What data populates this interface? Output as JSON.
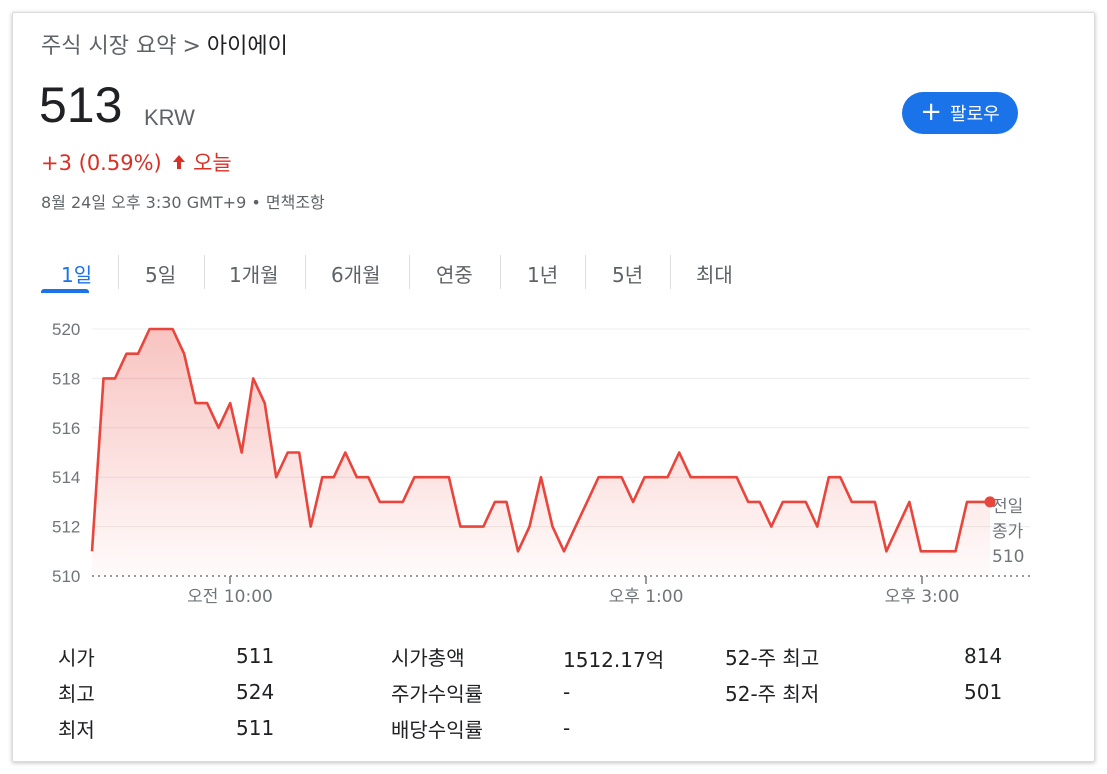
{
  "breadcrumb": {
    "root": "주식 시장 요약",
    "separator": ">",
    "company": "아이에이"
  },
  "quote": {
    "price": "513",
    "currency": "KRW",
    "change": "+3 (0.59%)",
    "change_period": "오늘",
    "timestamp": "8월 24일 오후 3:30 GMT+9",
    "disclaimer": "면책조항"
  },
  "follow_button": {
    "label": "팔로우",
    "icon": "plus-icon"
  },
  "tabs": [
    {
      "label": "1일",
      "active": true
    },
    {
      "label": "5일"
    },
    {
      "label": "1개월"
    },
    {
      "label": "6개월"
    },
    {
      "label": "연중"
    },
    {
      "label": "1년"
    },
    {
      "label": "5년"
    },
    {
      "label": "최대"
    }
  ],
  "colors": {
    "accent": "#1a73e8",
    "negative_positive": "#d93025",
    "line": "#e8453c"
  },
  "chart_data": {
    "type": "area",
    "y_ticks": [
      "520",
      "518",
      "516",
      "514",
      "512",
      "510"
    ],
    "ylim": [
      510,
      520
    ],
    "x_tick_labels": [
      "오전 10:00",
      "오후 1:00",
      "오후 3:00"
    ],
    "x_tick_times": [
      "09:45",
      "10:00",
      "11:00",
      "12:00",
      "13:00",
      "14:00",
      "15:00",
      "15:30"
    ],
    "previous_close_label": [
      "전일",
      "종가",
      "510"
    ],
    "previous_close": 510,
    "grid": true,
    "values": [
      511,
      518,
      518,
      519,
      519,
      520,
      520,
      520,
      519,
      517,
      517,
      516,
      517,
      515,
      518,
      517,
      514,
      515,
      515,
      512,
      514,
      514,
      515,
      514,
      514,
      513,
      513,
      513,
      514,
      514,
      514,
      514,
      512,
      512,
      512,
      513,
      513,
      511,
      512,
      514,
      512,
      511,
      512,
      513,
      514,
      514,
      514,
      513,
      514,
      514,
      514,
      515,
      514,
      514,
      514,
      514,
      514,
      513,
      513,
      512,
      513,
      513,
      513,
      512,
      514,
      514,
      513,
      513,
      513,
      511,
      512,
      513,
      511,
      511,
      511,
      511,
      513,
      513,
      513
    ]
  },
  "stats": {
    "col1": [
      {
        "label": "시가",
        "value": "511"
      },
      {
        "label": "최고",
        "value": "524"
      },
      {
        "label": "최저",
        "value": "511"
      }
    ],
    "col2": [
      {
        "label": "시가총액",
        "value": "1512.17억"
      },
      {
        "label": "주가수익률",
        "value": "-"
      },
      {
        "label": "배당수익률",
        "value": "-"
      }
    ],
    "col3": [
      {
        "label": "52-주 최고",
        "value": "814"
      },
      {
        "label": "52-주 최저",
        "value": "501"
      }
    ]
  }
}
